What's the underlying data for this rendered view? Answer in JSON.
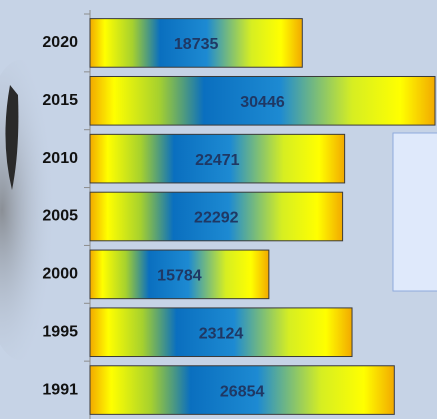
{
  "chart_data": {
    "type": "bar",
    "orientation": "horizontal",
    "categories": [
      "2020",
      "2015",
      "2010",
      "2005",
      "2000",
      "1995",
      "1991"
    ],
    "values": [
      18735,
      30446,
      22471,
      22292,
      15784,
      23124,
      26854
    ]
  }
}
